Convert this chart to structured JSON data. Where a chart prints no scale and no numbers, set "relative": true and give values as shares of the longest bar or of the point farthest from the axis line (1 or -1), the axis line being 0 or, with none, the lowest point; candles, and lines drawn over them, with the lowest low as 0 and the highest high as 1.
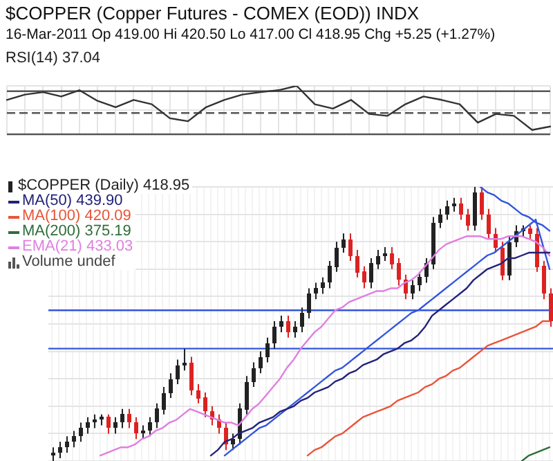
{
  "chart_data": [
    {
      "type": "line",
      "title": "$COPPER (Copper Futures - COMEX (EOD)) INDX",
      "subtitle": "16-Mar-2011 Op 419.00 Hi 420.50 Lo 417.00 Cl 418.95 Chg +5.25 (+1.27%)",
      "categories": [
        null,
        null,
        null,
        null,
        null,
        null,
        null,
        null,
        null,
        null,
        null,
        null,
        null,
        null,
        null,
        null,
        null,
        null,
        null,
        null,
        null,
        null,
        null,
        null,
        null,
        null,
        null,
        null,
        null,
        null,
        null
      ],
      "series": [
        {
          "color": "#333333",
          "values": [
            0.71,
            0.82,
            0.87,
            0.78,
            0.91,
            0.69,
            0.56,
            0.71,
            0.62,
            0.33,
            0.27,
            0.56,
            0.71,
            0.82,
            0.87,
            0.91,
            1,
            0.62,
            0.53,
            0.71,
            0.42,
            0.38,
            0.62,
            0.78,
            0.71,
            0.62,
            0.24,
            0.42,
            0.38,
            0.09,
            0.16
          ]
        }
      ],
      "relative": true,
      "grid": true,
      "ref_lines": [
        {
          "axis": "y",
          "value": 0.89,
          "color": "#555555"
        },
        {
          "axis": "y",
          "value": 0.44,
          "color": "#555555",
          "line_style": "dashed"
        },
        {
          "axis": "y",
          "value": 0,
          "color": "#555555"
        }
      ],
      "annotations": [
        "RSI(14) 37.04"
      ]
    },
    {
      "type": "candlestick",
      "relative": true,
      "grid": true,
      "legend": "top left",
      "categories": [
        null,
        null,
        null,
        null,
        null,
        null,
        null,
        null,
        null,
        null,
        null,
        null,
        null,
        null,
        null,
        null,
        null,
        null,
        null,
        null,
        null,
        null,
        null,
        null,
        null,
        null,
        null,
        null,
        null,
        null,
        null,
        null,
        null,
        null,
        null,
        null,
        null,
        null,
        null,
        null,
        null,
        null,
        null,
        null,
        null,
        null,
        null,
        null,
        null,
        null,
        null,
        null,
        null,
        null,
        null,
        null,
        null,
        null,
        null,
        null,
        null,
        null,
        null,
        null,
        null,
        null,
        null,
        null,
        null,
        null,
        null,
        null,
        null
      ],
      "series": [
        {
          "name": "$COPPER (Daily) 418.95",
          "type": "candlestick",
          "ohlc": [
            [
              0.02,
              0.05,
              0,
              0.03
            ],
            [
              0.03,
              0.07,
              0.01,
              0.05
            ],
            [
              0.05,
              0.09,
              0.03,
              0.07
            ],
            [
              0.07,
              0.11,
              0.05,
              0.09
            ],
            [
              0.09,
              0.14,
              0.07,
              0.12
            ],
            [
              0.12,
              0.16,
              0.1,
              0.14
            ],
            [
              0.14,
              0.17,
              0.12,
              0.15
            ],
            [
              0.15,
              0.17,
              0.13,
              0.16
            ],
            [
              0.16,
              0.17,
              0.1,
              0.12
            ],
            [
              0.12,
              0.16,
              0.1,
              0.14
            ],
            [
              0.14,
              0.19,
              0.12,
              0.17
            ],
            [
              0.17,
              0.19,
              0.12,
              0.14
            ],
            [
              0.14,
              0.16,
              0.08,
              0.1
            ],
            [
              0.1,
              0.13,
              0.08,
              0.11
            ],
            [
              0.11,
              0.16,
              0.09,
              0.14
            ],
            [
              0.14,
              0.21,
              0.12,
              0.19
            ],
            [
              0.19,
              0.27,
              0.17,
              0.25
            ],
            [
              0.25,
              0.32,
              0.23,
              0.3
            ],
            [
              0.3,
              0.37,
              0.28,
              0.35
            ],
            [
              0.35,
              0.41,
              0.33,
              0.36
            ],
            [
              0.36,
              0.38,
              0.24,
              0.26
            ],
            [
              0.26,
              0.28,
              0.21,
              0.23
            ],
            [
              0.23,
              0.25,
              0.16,
              0.18
            ],
            [
              0.18,
              0.2,
              0.13,
              0.15
            ],
            [
              0.15,
              0.17,
              0.1,
              0.12
            ],
            [
              0.12,
              0.14,
              0.04,
              0.06
            ],
            [
              0.06,
              0.1,
              0.04,
              0.08
            ],
            [
              0.08,
              0.21,
              0.06,
              0.19
            ],
            [
              0.19,
              0.31,
              0.17,
              0.29
            ],
            [
              0.29,
              0.36,
              0.27,
              0.34
            ],
            [
              0.34,
              0.4,
              0.32,
              0.38
            ],
            [
              0.38,
              0.45,
              0.36,
              0.43
            ],
            [
              0.43,
              0.51,
              0.41,
              0.49
            ],
            [
              0.49,
              0.53,
              0.47,
              0.51
            ],
            [
              0.51,
              0.53,
              0.45,
              0.47
            ],
            [
              0.47,
              0.51,
              0.45,
              0.49
            ],
            [
              0.49,
              0.56,
              0.47,
              0.54
            ],
            [
              0.54,
              0.63,
              0.52,
              0.61
            ],
            [
              0.61,
              0.65,
              0.59,
              0.63
            ],
            [
              0.63,
              0.67,
              0.61,
              0.65
            ],
            [
              0.65,
              0.73,
              0.63,
              0.71
            ],
            [
              0.71,
              0.8,
              0.69,
              0.78
            ],
            [
              0.78,
              0.83,
              0.76,
              0.81
            ],
            [
              0.81,
              0.83,
              0.73,
              0.75
            ],
            [
              0.75,
              0.77,
              0.67,
              0.69
            ],
            [
              0.69,
              0.71,
              0.63,
              0.65
            ],
            [
              0.65,
              0.74,
              0.63,
              0.72
            ],
            [
              0.72,
              0.77,
              0.7,
              0.75
            ],
            [
              0.75,
              0.78,
              0.73,
              0.76
            ],
            [
              0.76,
              0.78,
              0.7,
              0.72
            ],
            [
              0.72,
              0.74,
              0.64,
              0.66
            ],
            [
              0.66,
              0.68,
              0.59,
              0.61
            ],
            [
              0.61,
              0.66,
              0.59,
              0.64
            ],
            [
              0.64,
              0.69,
              0.62,
              0.67
            ],
            [
              0.67,
              0.74,
              0.65,
              0.72
            ],
            [
              0.72,
              0.89,
              0.7,
              0.87
            ],
            [
              0.87,
              0.92,
              0.85,
              0.9
            ],
            [
              0.9,
              0.95,
              0.88,
              0.93
            ],
            [
              0.93,
              0.96,
              0.91,
              0.94
            ],
            [
              0.94,
              0.96,
              0.88,
              0.9
            ],
            [
              0.9,
              0.92,
              0.84,
              0.86
            ],
            [
              0.86,
              1,
              0.84,
              0.98
            ],
            [
              0.98,
              1,
              0.88,
              0.9
            ],
            [
              0.9,
              0.92,
              0.81,
              0.83
            ],
            [
              0.83,
              0.85,
              0.76,
              0.78
            ],
            [
              0.78,
              0.8,
              0.66,
              0.68
            ],
            [
              0.68,
              0.82,
              0.66,
              0.8
            ],
            [
              0.8,
              0.86,
              0.78,
              0.84
            ],
            [
              0.84,
              0.86,
              0.82,
              0.85
            ],
            [
              0.85,
              0.86,
              0.81,
              0.83
            ],
            [
              0.83,
              0.85,
              0.69,
              0.71
            ],
            [
              0.71,
              0.73,
              0.59,
              0.61
            ],
            [
              0.61,
              0.63,
              0.49,
              0.51
            ]
          ],
          "colors": [
            "#222222",
            "#222222",
            "#222222",
            "#222222",
            "#222222",
            "#222222",
            "#222222",
            "#222222",
            "#dd2222",
            "#222222",
            "#222222",
            "#dd2222",
            "#dd2222",
            "#222222",
            "#222222",
            "#222222",
            "#222222",
            "#222222",
            "#222222",
            "#222222",
            "#dd2222",
            "#dd2222",
            "#dd2222",
            "#dd2222",
            "#dd2222",
            "#dd2222",
            "#222222",
            "#222222",
            "#222222",
            "#222222",
            "#222222",
            "#222222",
            "#222222",
            "#222222",
            "#dd2222",
            "#222222",
            "#222222",
            "#222222",
            "#222222",
            "#222222",
            "#222222",
            "#222222",
            "#222222",
            "#dd2222",
            "#dd2222",
            "#dd2222",
            "#222222",
            "#222222",
            "#222222",
            "#dd2222",
            "#dd2222",
            "#dd2222",
            "#222222",
            "#222222",
            "#222222",
            "#222222",
            "#222222",
            "#222222",
            "#222222",
            "#dd2222",
            "#dd2222",
            "#222222",
            "#dd2222",
            "#dd2222",
            "#dd2222",
            "#dd2222",
            "#222222",
            "#222222",
            "#222222",
            "#dd2222",
            "#dd2222",
            "#dd2222",
            "#dd2222"
          ]
        }
      ],
      "ref_lines": [
        {
          "axis": "y",
          "value": 0.55,
          "color": "#3355dd"
        },
        {
          "axis": "y",
          "value": 0.41,
          "color": "#3355dd"
        }
      ]
    },
    {
      "type": "line",
      "relative": true,
      "legend": "top left",
      "categories": [
        null,
        null,
        null,
        null,
        null,
        null,
        null,
        null,
        null,
        null,
        null,
        null,
        null,
        null,
        null,
        null,
        null,
        null,
        null,
        null,
        null,
        null,
        null,
        null,
        null,
        null,
        null,
        null,
        null,
        null,
        null,
        null,
        null,
        null,
        null,
        null,
        null,
        null,
        null,
        null,
        null,
        null,
        null,
        null,
        null,
        null,
        null,
        null,
        null,
        null,
        null,
        null,
        null,
        null,
        null,
        null,
        null,
        null,
        null,
        null,
        null,
        null,
        null,
        null,
        null,
        null,
        null,
        null,
        null,
        null,
        null,
        null,
        null
      ],
      "series": [
        {
          "name": "MA(50) 439.90",
          "color": "#22227a",
          "values": [
            null,
            null,
            null,
            null,
            null,
            null,
            null,
            null,
            null,
            null,
            null,
            null,
            null,
            null,
            null,
            null,
            null,
            null,
            null,
            null,
            null,
            null,
            null,
            0.02,
            0.04,
            0.07,
            0.08,
            0.1,
            0.11,
            0.12,
            0.14,
            0.15,
            0.16,
            0.18,
            0.19,
            0.2,
            0.22,
            0.23,
            0.25,
            0.26,
            0.27,
            0.29,
            0.3,
            0.32,
            0.33,
            0.35,
            0.36,
            0.37,
            0.39,
            0.4,
            0.41,
            0.43,
            0.44,
            0.46,
            0.49,
            0.53,
            0.55,
            0.57,
            0.59,
            0.61,
            0.63,
            0.66,
            0.68,
            0.7,
            0.71,
            0.72,
            0.74,
            0.74,
            0.75,
            0.76,
            0.76,
            0.76,
            0.76
          ]
        },
        {
          "name": "MA(100) 420.09",
          "color": "#e8553a",
          "values": [
            null,
            null,
            null,
            null,
            null,
            null,
            null,
            null,
            null,
            null,
            null,
            null,
            null,
            null,
            null,
            null,
            null,
            null,
            null,
            null,
            null,
            null,
            null,
            null,
            null,
            null,
            null,
            null,
            null,
            null,
            null,
            null,
            null,
            null,
            null,
            null,
            null,
            0.02,
            0.04,
            0.05,
            0.07,
            0.09,
            0.1,
            0.12,
            0.14,
            0.16,
            0.17,
            0.18,
            0.19,
            0.2,
            0.22,
            0.23,
            0.24,
            0.25,
            0.27,
            0.28,
            0.3,
            0.31,
            0.33,
            0.34,
            0.36,
            0.38,
            0.4,
            0.42,
            0.43,
            0.44,
            0.45,
            0.46,
            0.47,
            0.48,
            0.49,
            0.51,
            0.51
          ]
        },
        {
          "name": "MA(200) 375.19",
          "color": "#2f6e3a",
          "values": [
            null,
            null,
            null,
            null,
            null,
            null,
            null,
            null,
            null,
            null,
            null,
            null,
            null,
            null,
            null,
            null,
            null,
            null,
            null,
            null,
            null,
            null,
            null,
            null,
            null,
            null,
            null,
            null,
            null,
            null,
            null,
            null,
            null,
            null,
            null,
            null,
            null,
            null,
            null,
            null,
            null,
            null,
            null,
            null,
            null,
            null,
            null,
            null,
            null,
            null,
            null,
            null,
            null,
            null,
            null,
            null,
            null,
            null,
            null,
            null,
            null,
            null,
            null,
            null,
            null,
            null,
            null,
            null,
            0,
            0.02,
            0.03,
            0.04,
            0.05
          ]
        },
        {
          "name": "EMA(21) 433.03",
          "color": "#e07fe0",
          "values": [
            null,
            null,
            null,
            null,
            null,
            null,
            null,
            0.02,
            0.03,
            0.04,
            0.05,
            0.05,
            0.06,
            0.08,
            0.09,
            0.11,
            0.12,
            0.14,
            0.15,
            0.17,
            0.19,
            0.18,
            0.17,
            0.16,
            0.15,
            0.14,
            0.14,
            0.13,
            0.16,
            0.19,
            0.21,
            0.24,
            0.27,
            0.3,
            0.34,
            0.37,
            0.41,
            0.44,
            0.47,
            0.49,
            0.52,
            0.55,
            0.56,
            0.58,
            0.59,
            0.6,
            0.61,
            0.62,
            0.62,
            0.63,
            0.63,
            0.65,
            0.66,
            0.68,
            0.71,
            0.74,
            0.77,
            0.79,
            0.8,
            0.81,
            0.82,
            0.82,
            0.82,
            0.81,
            0.81,
            0.81,
            0.82,
            0.82,
            0.82,
            0.81,
            0.8,
            0.78,
            0.75
          ]
        },
        {
          "color": "#3355dd",
          "values": [
            null,
            null,
            null,
            null,
            null,
            null,
            null,
            null,
            null,
            null,
            null,
            null,
            null,
            null,
            null,
            null,
            null,
            null,
            null,
            null,
            null,
            null,
            null,
            null,
            null,
            0.02,
            0.04,
            0.06,
            0.08,
            0.1,
            0.12,
            0.13,
            0.15,
            0.17,
            0.19,
            0.21,
            0.23,
            0.25,
            0.27,
            0.29,
            0.31,
            0.33,
            0.34,
            0.36,
            0.38,
            0.4,
            0.42,
            0.44,
            0.46,
            0.48,
            0.5,
            0.52,
            0.54,
            0.55,
            0.57,
            0.59,
            0.61,
            0.63,
            0.65,
            0.67,
            0.69,
            0.71,
            0.73,
            0.75,
            0.76,
            0.78,
            0.8,
            0.82,
            0.84,
            0.86,
            0.88,
            null,
            null
          ]
        },
        {
          "color": "#3355dd",
          "values": [
            null,
            null,
            null,
            null,
            null,
            null,
            null,
            null,
            null,
            null,
            null,
            null,
            null,
            null,
            null,
            null,
            null,
            null,
            null,
            null,
            null,
            null,
            null,
            null,
            null,
            null,
            null,
            null,
            null,
            null,
            null,
            null,
            null,
            null,
            null,
            null,
            null,
            null,
            null,
            null,
            null,
            null,
            null,
            null,
            null,
            null,
            null,
            null,
            null,
            null,
            null,
            null,
            null,
            null,
            null,
            null,
            null,
            null,
            null,
            null,
            null,
            null,
            1,
            0.98,
            0.97,
            0.95,
            0.94,
            0.92,
            0.9,
            0.89,
            0.87,
            0.86,
            0.84
          ]
        },
        {
          "color": "#3355dd",
          "values": [
            null,
            null,
            null,
            null,
            null,
            null,
            null,
            null,
            null,
            null,
            null,
            null,
            null,
            null,
            null,
            null,
            null,
            null,
            null,
            null,
            null,
            null,
            null,
            null,
            null,
            null,
            null,
            null,
            null,
            null,
            null,
            null,
            null,
            null,
            null,
            null,
            null,
            null,
            null,
            null,
            null,
            null,
            null,
            null,
            null,
            null,
            null,
            null,
            null,
            null,
            null,
            null,
            null,
            null,
            null,
            null,
            null,
            null,
            null,
            null,
            null,
            null,
            null,
            null,
            null,
            null,
            null,
            null,
            null,
            null,
            0.88,
            0.79,
            0.7
          ]
        }
      ],
      "annotations": [
        "Volume undef"
      ]
    }
  ]
}
